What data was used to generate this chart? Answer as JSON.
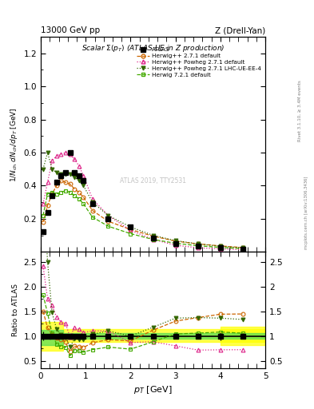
{
  "title_top_left": "13000 GeV pp",
  "title_top_right": "Z (Drell-Yan)",
  "main_title": "Scalar Σ(p_T) (ATLAS UE in Z production)",
  "ylabel_main": "1/N_{ch} dN_{ch}/dp_T [GeV]",
  "ylabel_ratio": "Ratio to ATLAS",
  "xlabel": "p_T [GeV]",
  "right_label_top": "Rivet 3.1.10, ≥ 3.4M events",
  "right_label_bottom": "mcplots.cern.ch [arXiv:1306.3436]",
  "watermark": "ATLAS 2019, TTY2531",
  "atlas_pt": [
    0.05,
    0.15,
    0.25,
    0.35,
    0.45,
    0.55,
    0.65,
    0.75,
    0.85,
    0.95,
    1.15,
    1.5,
    2.0,
    2.5,
    3.0,
    3.5,
    4.0,
    4.5
  ],
  "atlas_val": [
    0.12,
    0.24,
    0.34,
    0.42,
    0.46,
    0.48,
    0.6,
    0.48,
    0.46,
    0.43,
    0.29,
    0.2,
    0.15,
    0.085,
    0.05,
    0.035,
    0.025,
    0.018
  ],
  "atlas_err": [
    0.01,
    0.01,
    0.01,
    0.01,
    0.01,
    0.01,
    0.01,
    0.01,
    0.01,
    0.01,
    0.01,
    0.008,
    0.006,
    0.004,
    0.003,
    0.002,
    0.002,
    0.001
  ],
  "hw271_pt": [
    0.05,
    0.15,
    0.25,
    0.35,
    0.45,
    0.55,
    0.65,
    0.75,
    0.85,
    0.95,
    1.15,
    1.5,
    2.0,
    2.5,
    3.0,
    3.5,
    4.0,
    4.5
  ],
  "hw271_val": [
    0.18,
    0.28,
    0.35,
    0.4,
    0.43,
    0.42,
    0.41,
    0.38,
    0.36,
    0.33,
    0.25,
    0.185,
    0.135,
    0.095,
    0.065,
    0.048,
    0.036,
    0.026
  ],
  "hwpow271_pt": [
    0.05,
    0.15,
    0.25,
    0.35,
    0.45,
    0.55,
    0.65,
    0.75,
    0.85,
    0.95,
    1.15,
    1.5,
    2.0,
    2.5,
    3.0,
    3.5,
    4.0,
    4.5
  ],
  "hwpow271_val": [
    0.29,
    0.42,
    0.55,
    0.58,
    0.59,
    0.6,
    0.59,
    0.56,
    0.52,
    0.46,
    0.32,
    0.22,
    0.13,
    0.075,
    0.04,
    0.025,
    0.018,
    0.013
  ],
  "hwpow271lhc_pt": [
    0.05,
    0.15,
    0.25,
    0.35,
    0.45,
    0.55,
    0.65,
    0.75,
    0.85,
    0.95,
    1.15,
    1.5,
    2.0,
    2.5,
    3.0,
    3.5,
    4.0,
    4.5
  ],
  "hwpow271lhc_val": [
    0.5,
    0.6,
    0.5,
    0.48,
    0.47,
    0.47,
    0.47,
    0.45,
    0.43,
    0.4,
    0.3,
    0.22,
    0.15,
    0.1,
    0.068,
    0.048,
    0.034,
    0.024
  ],
  "hw721_pt": [
    0.05,
    0.15,
    0.25,
    0.35,
    0.45,
    0.55,
    0.65,
    0.75,
    0.85,
    0.95,
    1.15,
    1.5,
    2.0,
    2.5,
    3.0,
    3.5,
    4.0,
    4.5
  ],
  "hw721_val": [
    0.22,
    0.35,
    0.36,
    0.35,
    0.36,
    0.37,
    0.36,
    0.34,
    0.32,
    0.29,
    0.21,
    0.155,
    0.11,
    0.075,
    0.052,
    0.037,
    0.027,
    0.019
  ],
  "color_atlas": "#000000",
  "color_hw271": "#cc6600",
  "color_hwpow271": "#dd2288",
  "color_hwpow271lhc": "#336600",
  "color_hw721": "#44aa00",
  "xlim": [
    0.0,
    5.0
  ],
  "ylim_main": [
    0.0,
    1.3
  ],
  "ylim_ratio": [
    0.35,
    2.7
  ],
  "yticks_main": [
    0.2,
    0.4,
    0.6,
    0.8,
    1.0,
    1.2
  ],
  "yticks_ratio": [
    0.5,
    1.0,
    1.5,
    2.0,
    2.5
  ],
  "xticks": [
    0,
    1,
    2,
    3,
    4,
    5
  ]
}
